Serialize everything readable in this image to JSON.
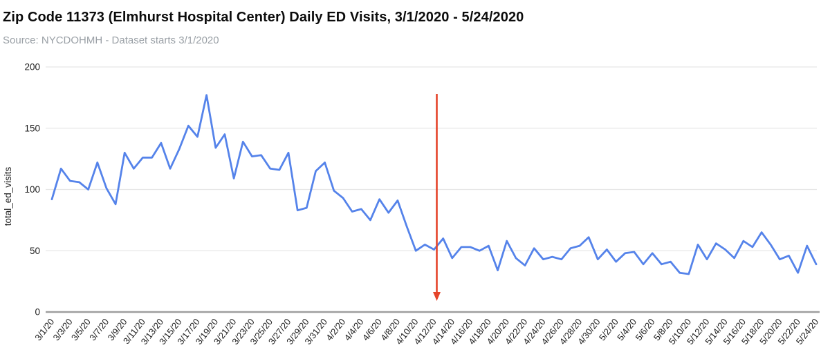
{
  "header": {
    "title": "Zip Code 11373 (Elmhurst Hospital Center) Daily ED Visits, 3/1/2020 - 5/24/2020",
    "subtitle": "Source: NYCDOHMH - Dataset starts 3/1/2020"
  },
  "colors": {
    "series_line": "#5583ea",
    "annotation_arrow": "#e5442a",
    "gridline": "#e6e6e6",
    "axis_line": "#9e9e9e",
    "tick_label": "#1d1d1d",
    "title_text": "#0c0c0c",
    "subtitle_text": "#9aa0a6"
  },
  "chart_data": {
    "type": "line",
    "title": "Zip Code 11373 (Elmhurst Hospital Center) Daily ED Visits, 3/1/2020 - 5/24/2020",
    "xlabel": "",
    "ylabel": "total_ed_visits",
    "ylim": [
      0,
      200
    ],
    "yticks": [
      0,
      50,
      100,
      150,
      200
    ],
    "grid": true,
    "legend_position": "none",
    "x_tick_step": 2,
    "x": [
      "3/1/20",
      "3/2/20",
      "3/3/20",
      "3/4/20",
      "3/5/20",
      "3/6/20",
      "3/7/20",
      "3/8/20",
      "3/9/20",
      "3/10/20",
      "3/11/20",
      "3/12/20",
      "3/13/20",
      "3/14/20",
      "3/15/20",
      "3/16/20",
      "3/17/20",
      "3/18/20",
      "3/19/20",
      "3/20/20",
      "3/21/20",
      "3/22/20",
      "3/23/20",
      "3/24/20",
      "3/25/20",
      "3/26/20",
      "3/27/20",
      "3/28/20",
      "3/29/20",
      "3/30/20",
      "3/31/20",
      "4/1/20",
      "4/2/20",
      "4/3/20",
      "4/4/20",
      "4/5/20",
      "4/6/20",
      "4/7/20",
      "4/8/20",
      "4/9/20",
      "4/10/20",
      "4/11/20",
      "4/12/20",
      "4/13/20",
      "4/14/20",
      "4/15/20",
      "4/16/20",
      "4/17/20",
      "4/18/20",
      "4/19/20",
      "4/20/20",
      "4/21/20",
      "4/22/20",
      "4/23/20",
      "4/24/20",
      "4/25/20",
      "4/26/20",
      "4/27/20",
      "4/28/20",
      "4/29/20",
      "4/30/20",
      "5/1/20",
      "5/2/20",
      "5/3/20",
      "5/4/20",
      "5/5/20",
      "5/6/20",
      "5/7/20",
      "5/8/20",
      "5/9/20",
      "5/10/20",
      "5/11/20",
      "5/12/20",
      "5/13/20",
      "5/14/20",
      "5/15/20",
      "5/16/20",
      "5/17/20",
      "5/18/20",
      "5/19/20",
      "5/20/20",
      "5/21/20",
      "5/22/20",
      "5/23/20",
      "5/24/20"
    ],
    "series": [
      {
        "name": "total_ed_visits",
        "color": "#5583ea",
        "values": [
          92,
          117,
          107,
          106,
          100,
          122,
          101,
          88,
          130,
          117,
          126,
          126,
          138,
          117,
          133,
          152,
          143,
          177,
          134,
          145,
          109,
          139,
          127,
          128,
          117,
          116,
          130,
          83,
          85,
          115,
          122,
          99,
          93,
          82,
          84,
          75,
          92,
          81,
          91,
          70,
          50,
          55,
          51,
          60,
          44,
          53,
          53,
          50,
          54,
          34,
          58,
          44,
          38,
          52,
          43,
          45,
          43,
          52,
          54,
          61,
          43,
          51,
          41,
          48,
          49,
          39,
          48,
          39,
          41,
          32,
          31,
          55,
          43,
          56,
          51,
          44,
          58,
          53,
          65,
          55,
          43,
          46,
          32,
          54,
          39
        ]
      }
    ],
    "annotations": [
      {
        "shape": "arrow-down",
        "x": "4/12/20",
        "y_from": 178,
        "y_to": 9,
        "color": "#e5442a"
      }
    ]
  }
}
